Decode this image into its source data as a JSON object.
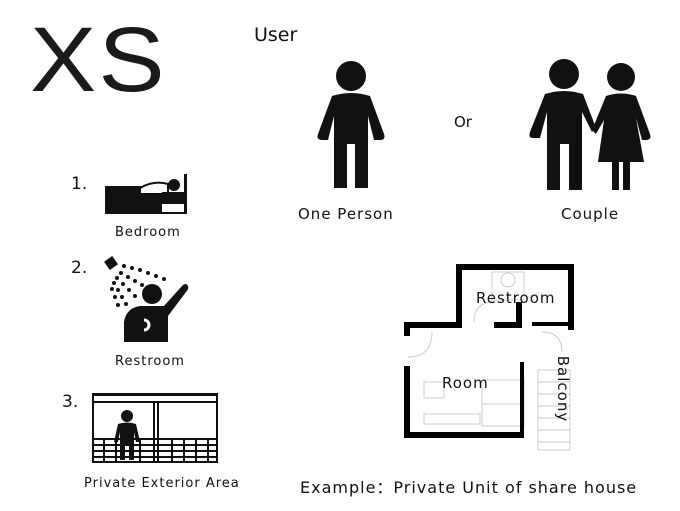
{
  "title": "XS",
  "user": {
    "heading": "User",
    "or": "Or",
    "one_person": "One Person",
    "couple": "Couple"
  },
  "items": [
    {
      "number": "1.",
      "label": "Bedroom",
      "icon": "bed-icon"
    },
    {
      "number": "2.",
      "label": "Restroom",
      "icon": "shower-icon"
    },
    {
      "number": "3.",
      "label": "Private Exterior Area",
      "icon": "balcony-icon"
    }
  ],
  "floorplan": {
    "restroom": "Restroom",
    "room": "Room",
    "balcony": "Balcony"
  },
  "example_caption": "Example：Private Unit of share house",
  "colors": {
    "ink": "#111111",
    "plan_wall": "#000000",
    "plan_detail": "#cccccc"
  }
}
